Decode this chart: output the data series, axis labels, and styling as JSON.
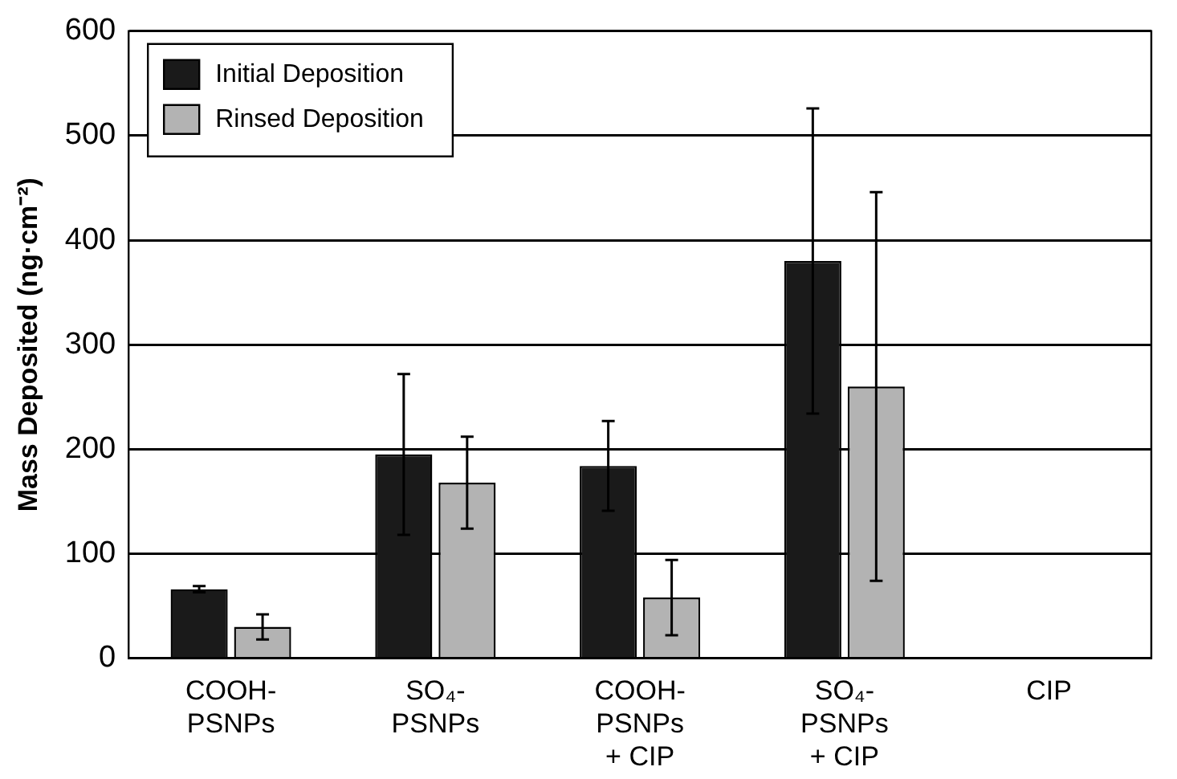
{
  "chart_data": {
    "type": "bar",
    "ylabel": "Mass Deposited (ng·cm⁻²)",
    "categories": [
      "COOH-\nPSNPs",
      "SO₄-\nPSNPs",
      "COOH-\nPSNPs\n+ CIP",
      "SO₄-\nPSNPs\n+ CIP",
      "CIP"
    ],
    "series": [
      {
        "name": "Initial Deposition",
        "color": "#1a1a1a",
        "values": [
          66,
          195,
          184,
          380,
          null
        ],
        "errors": [
          3,
          77,
          43,
          146,
          null
        ]
      },
      {
        "name": "Rinsed Deposition",
        "color": "#b3b3b3",
        "values": [
          30,
          168,
          58,
          260,
          null
        ],
        "errors": [
          12,
          44,
          36,
          186,
          null
        ]
      }
    ],
    "ylim": [
      0,
      600
    ],
    "yticks": [
      0,
      100,
      200,
      300,
      400,
      500,
      600
    ],
    "grid": "y",
    "legend": "top left"
  }
}
